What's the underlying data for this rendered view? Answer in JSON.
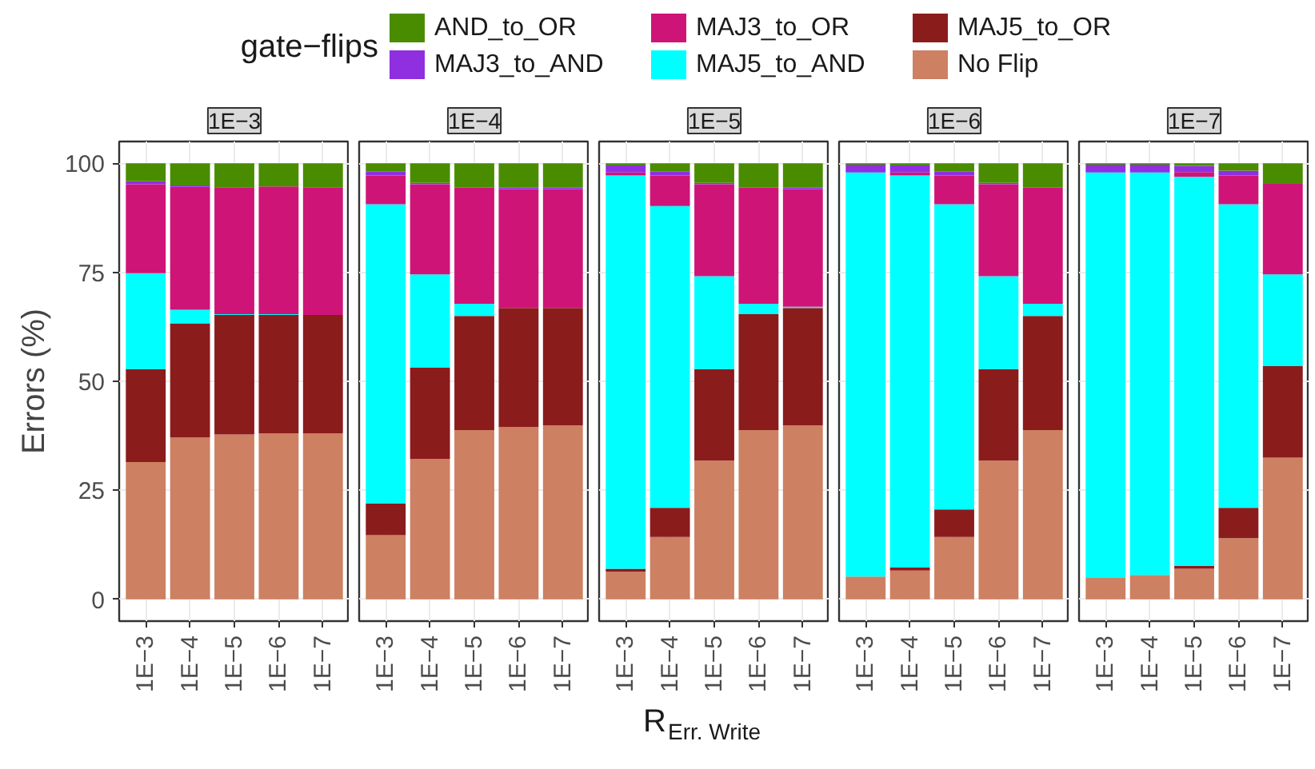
{
  "chart_data": [
    {
      "type": "bar",
      "stacked": true,
      "title": "1E−3",
      "ylabel": "Errors (%)",
      "legend_title": "gate−flips",
      "legend": "top",
      "grid": true,
      "categories": [
        "1E−3",
        "1E−4",
        "1E−5",
        "1E−6",
        "1E−7"
      ],
      "ylim": [
        -5,
        105
      ],
      "yticks": [
        0,
        25,
        50,
        75,
        100
      ],
      "series": [
        {
          "name": "No Flip",
          "color": "#cd8062",
          "values": [
            31.5,
            37.1,
            37.8,
            38.1,
            38.1
          ]
        },
        {
          "name": "MAJ5_to_OR",
          "color": "#8b1c1c",
          "values": [
            21.3,
            26.2,
            27.4,
            27.1,
            27.1
          ]
        },
        {
          "name": "MAJ5_to_AND",
          "color": "#00ffff",
          "values": [
            22.0,
            3.1,
            0.2,
            0.2,
            0
          ]
        },
        {
          "name": "MAJ3_to_OR",
          "color": "#cf1478",
          "values": [
            20.4,
            28.2,
            29.1,
            29.3,
            29.3
          ]
        },
        {
          "name": "MAJ3_to_AND",
          "color": "#8f2fe0",
          "values": [
            0.7,
            0.3,
            0,
            0,
            0
          ]
        },
        {
          "name": "AND_to_OR",
          "color": "#4a8c00",
          "values": [
            4.1,
            5.1,
            5.5,
            5.3,
            5.5
          ]
        }
      ]
    },
    {
      "type": "bar",
      "stacked": true,
      "title": "1E−4",
      "grid": true,
      "tick_labels": "x",
      "categories": [
        "1E−3",
        "1E−4",
        "1E−5",
        "1E−6",
        "1E−7"
      ],
      "ylim": [
        -5,
        105
      ],
      "yticks": [
        0,
        25,
        50,
        75,
        100
      ],
      "series": [
        {
          "color": "#cd8062",
          "values": [
            14.7,
            32.2,
            38.8,
            39.5,
            39.9
          ]
        },
        {
          "color": "#8b1c1c",
          "values": [
            7.3,
            20.9,
            26.2,
            27.3,
            26.9
          ]
        },
        {
          "color": "#00ffff",
          "values": [
            68.6,
            21.4,
            2.8,
            0,
            0
          ]
        },
        {
          "color": "#cf1478",
          "values": [
            6.6,
            20.7,
            26.6,
            27.3,
            27.3
          ]
        },
        {
          "color": "#8f2fe0",
          "values": [
            0.9,
            0.3,
            0,
            0.3,
            0.3
          ]
        },
        {
          "color": "#4a8c00",
          "values": [
            1.9,
            4.5,
            5.6,
            5.6,
            5.6
          ]
        }
      ]
    },
    {
      "type": "bar",
      "stacked": true,
      "title": "1E−5",
      "xlabel": "R$_{Err. Write}$",
      "grid": true,
      "tick_labels": "x",
      "categories": [
        "1E−3",
        "1E−4",
        "1E−5",
        "1E−6",
        "1E−7"
      ],
      "ylim": [
        -5,
        105
      ],
      "yticks": [
        0,
        25,
        50,
        75,
        100
      ],
      "series": [
        {
          "color": "#cd8062",
          "values": [
            6.3,
            14.3,
            31.8,
            38.8,
            39.9
          ]
        },
        {
          "color": "#8b1c1c",
          "values": [
            0.7,
            6.7,
            21.0,
            26.6,
            26.9
          ]
        },
        {
          "color": "#00ffff",
          "values": [
            90.2,
            69.2,
            21.3,
            2.4,
            0.3
          ]
        },
        {
          "color": "#cf1478",
          "values": [
            0.7,
            7.0,
            21.1,
            26.6,
            27.0
          ]
        },
        {
          "color": "#8f2fe0",
          "values": [
            1.6,
            0.9,
            0.3,
            0,
            0.3
          ]
        },
        {
          "color": "#4a8c00",
          "values": [
            0.5,
            1.9,
            4.5,
            5.6,
            5.6
          ]
        }
      ]
    },
    {
      "type": "bar",
      "stacked": true,
      "title": "1E−6",
      "grid": true,
      "tick_labels": "x",
      "categories": [
        "1E−3",
        "1E−4",
        "1E−5",
        "1E−6",
        "1E−7"
      ],
      "ylim": [
        -5,
        105
      ],
      "yticks": [
        0,
        25,
        50,
        75,
        100
      ],
      "series": [
        {
          "color": "#cd8062",
          "values": [
            5.2,
            6.6,
            14.3,
            31.8,
            38.8
          ]
        },
        {
          "color": "#8b1c1c",
          "values": [
            0,
            0.7,
            6.3,
            21.0,
            26.2
          ]
        },
        {
          "color": "#00ffff",
          "values": [
            92.7,
            89.9,
            70.0,
            21.3,
            2.8
          ]
        },
        {
          "color": "#cf1478",
          "values": [
            0,
            0.7,
            6.6,
            21.1,
            26.6
          ]
        },
        {
          "color": "#8f2fe0",
          "values": [
            1.8,
            1.6,
            0.9,
            0.3,
            0
          ]
        },
        {
          "color": "#4a8c00",
          "values": [
            0.3,
            0.5,
            1.9,
            4.5,
            5.6
          ]
        }
      ]
    },
    {
      "type": "bar",
      "stacked": true,
      "title": "1E−7",
      "grid": true,
      "tick_labels": "x",
      "categories": [
        "1E−3",
        "1E−4",
        "1E−5",
        "1E−6",
        "1E−7"
      ],
      "ylim": [
        -5,
        105
      ],
      "yticks": [
        0,
        25,
        50,
        75,
        100
      ],
      "series": [
        {
          "color": "#cd8062",
          "values": [
            4.9,
            5.6,
            7.0,
            14.0,
            32.5
          ]
        },
        {
          "color": "#8b1c1c",
          "values": [
            0,
            0,
            0.7,
            7.0,
            21.0
          ]
        },
        {
          "color": "#00ffff",
          "values": [
            93.0,
            92.3,
            89.2,
            69.6,
            21.0
          ]
        },
        {
          "color": "#cf1478",
          "values": [
            0,
            0,
            1.1,
            6.6,
            20.8
          ]
        },
        {
          "color": "#8f2fe0",
          "values": [
            1.8,
            1.8,
            1.4,
            1.1,
            0
          ]
        },
        {
          "color": "#4a8c00",
          "values": [
            0.3,
            0.3,
            0.6,
            1.7,
            4.7
          ]
        }
      ]
    }
  ]
}
